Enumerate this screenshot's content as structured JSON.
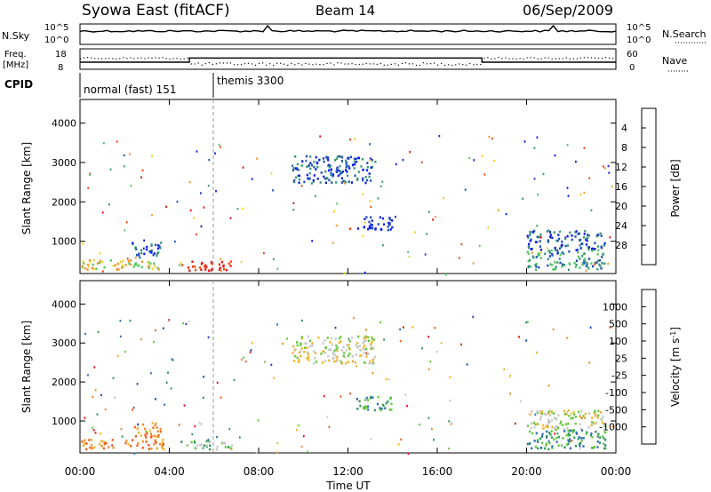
{
  "header": {
    "station": "Syowa East (fitACF)",
    "beam": "Beam 14",
    "date": "06/Sep/2009"
  },
  "top_panels": {
    "nsky_label": "N.Sky",
    "nsky_ticks": [
      "10^5",
      "10^0"
    ],
    "nsearch_label": "N.Search",
    "nsearch_ticks": [
      "10^5",
      "10^0"
    ],
    "freq_label": [
      "Freq.",
      "[MHz]"
    ],
    "freq_ticks": [
      "18",
      "8"
    ],
    "nave_label": "Nave",
    "nave_ticks": [
      "60",
      "0"
    ],
    "cpid_label": "CPID",
    "cpid_segments": [
      {
        "label": "normal (fast) 151",
        "start_hour": 0,
        "end_hour": 5.9
      },
      {
        "label": "themis 3300",
        "start_hour": 5.9,
        "end_hour": 24
      }
    ],
    "freq_steps": [
      {
        "start_hour": 0,
        "end_hour": 4.9,
        "mhz": 11.5
      },
      {
        "start_hour": 4.9,
        "end_hour": 18.0,
        "mhz": 13.5
      },
      {
        "start_hour": 18.0,
        "end_hour": 24,
        "mhz": 11.5
      }
    ]
  },
  "chart_data": [
    {
      "type": "heatmap",
      "name": "power",
      "ylabel": "Slant Range [km]",
      "xlabel": "Time UT",
      "x_ticks": [
        "00:00",
        "04:00",
        "08:00",
        "12:00",
        "16:00",
        "20:00",
        "00:00"
      ],
      "xlim_hours": [
        0,
        24
      ],
      "ylim_km": [
        180,
        4600
      ],
      "y_ticks": [
        1000,
        2000,
        3000,
        4000
      ],
      "colorbar_label": "Power [dB]",
      "colorbar_ticks": [
        "4",
        "8",
        "12",
        "16",
        "20",
        "24",
        "28"
      ],
      "colorbar_colors": [
        "#0a1ee6",
        "#1e50b4",
        "#3c9678",
        "#50c860",
        "#f0d028",
        "#f09628",
        "#f04b14",
        "#e61414"
      ],
      "clusters": [
        {
          "t0": 0.0,
          "t1": 3.8,
          "r0": 300,
          "r1": 550,
          "level": 4
        },
        {
          "t0": 4.5,
          "t1": 6.8,
          "r0": 280,
          "r1": 520,
          "level": 7
        },
        {
          "t0": 2.3,
          "t1": 3.6,
          "r0": 600,
          "r1": 1000,
          "level": 1
        },
        {
          "t0": 9.5,
          "t1": 13.2,
          "r0": 2500,
          "r1": 3200,
          "level": 1
        },
        {
          "t0": 12.3,
          "t1": 14.0,
          "r0": 1300,
          "r1": 1650,
          "level": 0
        },
        {
          "t0": 20.0,
          "t1": 23.5,
          "r0": 800,
          "r1": 1300,
          "level": 1
        },
        {
          "t0": 20.0,
          "t1": 23.5,
          "r0": 300,
          "r1": 800,
          "level": 2
        }
      ]
    },
    {
      "type": "heatmap",
      "name": "velocity",
      "ylabel": "Slant Range [km]",
      "xlabel": "Time UT",
      "x_ticks": [
        "00:00",
        "04:00",
        "08:00",
        "12:00",
        "16:00",
        "20:00",
        "00:00"
      ],
      "xlim_hours": [
        0,
        24
      ],
      "ylim_km": [
        180,
        4600
      ],
      "y_ticks": [
        1000,
        2000,
        3000,
        4000
      ],
      "colorbar_label": "Velocity [m s^-1]",
      "colorbar_ticks": [
        "1000",
        "500",
        "100",
        "25",
        "-25",
        "-100",
        "-500",
        "-1000"
      ],
      "colorbar_colors": [
        "#1e3cc8",
        "#2d6eb4",
        "#32965a",
        "#64c83c",
        "#c8c8c8",
        "#f0b428",
        "#f08c28",
        "#f05a1e",
        "#e61414"
      ],
      "clusters": [
        {
          "t0": 0.0,
          "t1": 3.8,
          "r0": 300,
          "r1": 550,
          "level": 6
        },
        {
          "t0": 4.5,
          "t1": 6.8,
          "r0": 280,
          "r1": 520,
          "level": 3
        },
        {
          "t0": 2.3,
          "t1": 3.6,
          "r0": 600,
          "r1": 1000,
          "level": 6
        },
        {
          "t0": 9.5,
          "t1": 13.2,
          "r0": 2500,
          "r1": 3200,
          "level": 4
        },
        {
          "t0": 12.3,
          "t1": 14.0,
          "r0": 1300,
          "r1": 1650,
          "level": 2
        },
        {
          "t0": 20.0,
          "t1": 23.5,
          "r0": 800,
          "r1": 1300,
          "level": 4
        },
        {
          "t0": 20.0,
          "t1": 23.5,
          "r0": 300,
          "r1": 800,
          "level": 2
        }
      ]
    }
  ]
}
